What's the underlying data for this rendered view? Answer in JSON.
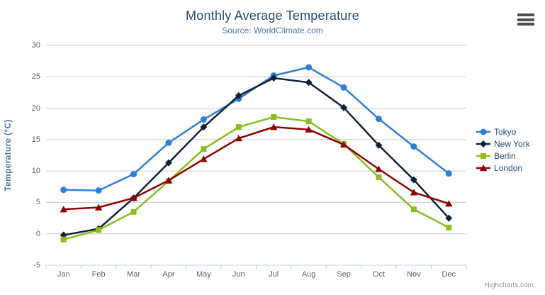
{
  "chart_data": {
    "type": "line",
    "title": "Monthly Average Temperature",
    "subtitle": "Source: WorldClimate.com",
    "xlabel": "",
    "ylabel": "Temperature (°C)",
    "categories": [
      "Jan",
      "Feb",
      "Mar",
      "Apr",
      "May",
      "Jun",
      "Jul",
      "Aug",
      "Sep",
      "Oct",
      "Nov",
      "Dec"
    ],
    "yticks": [
      -5,
      0,
      5,
      10,
      15,
      20,
      25,
      30
    ],
    "ylim": [
      -5,
      30
    ],
    "grid": true,
    "legend_position": "right",
    "series": [
      {
        "name": "Tokyo",
        "color": "#2f7ed8",
        "marker": "circle",
        "values": [
          7.0,
          6.9,
          9.5,
          14.5,
          18.2,
          21.5,
          25.2,
          26.5,
          23.3,
          18.3,
          13.9,
          9.6
        ]
      },
      {
        "name": "New York",
        "color": "#0d233a",
        "marker": "diamond",
        "values": [
          -0.2,
          0.8,
          5.7,
          11.3,
          17.0,
          22.0,
          24.8,
          24.1,
          20.1,
          14.1,
          8.6,
          2.5
        ]
      },
      {
        "name": "Berlin",
        "color": "#8bbc21",
        "marker": "square",
        "values": [
          -0.9,
          0.6,
          3.5,
          8.4,
          13.5,
          17.0,
          18.6,
          17.9,
          14.3,
          9.0,
          3.9,
          1.0
        ]
      },
      {
        "name": "London",
        "color": "#910000",
        "marker": "triangle",
        "values": [
          3.9,
          4.2,
          5.7,
          8.5,
          11.9,
          15.2,
          17.0,
          16.6,
          14.2,
          10.3,
          6.6,
          4.8
        ]
      }
    ]
  },
  "credits": "Highcharts.com",
  "icons": {
    "context_menu": "hamburger-icon"
  },
  "colors": {
    "title": "#274b6d",
    "subtitle": "#4d759e",
    "axis_title": "#4d759e",
    "axis_label": "#606060",
    "grid_line": "#c9c9c9",
    "axis_line": "#c0d0e0",
    "legend_text": "#274b6d",
    "credits": "#909090"
  }
}
